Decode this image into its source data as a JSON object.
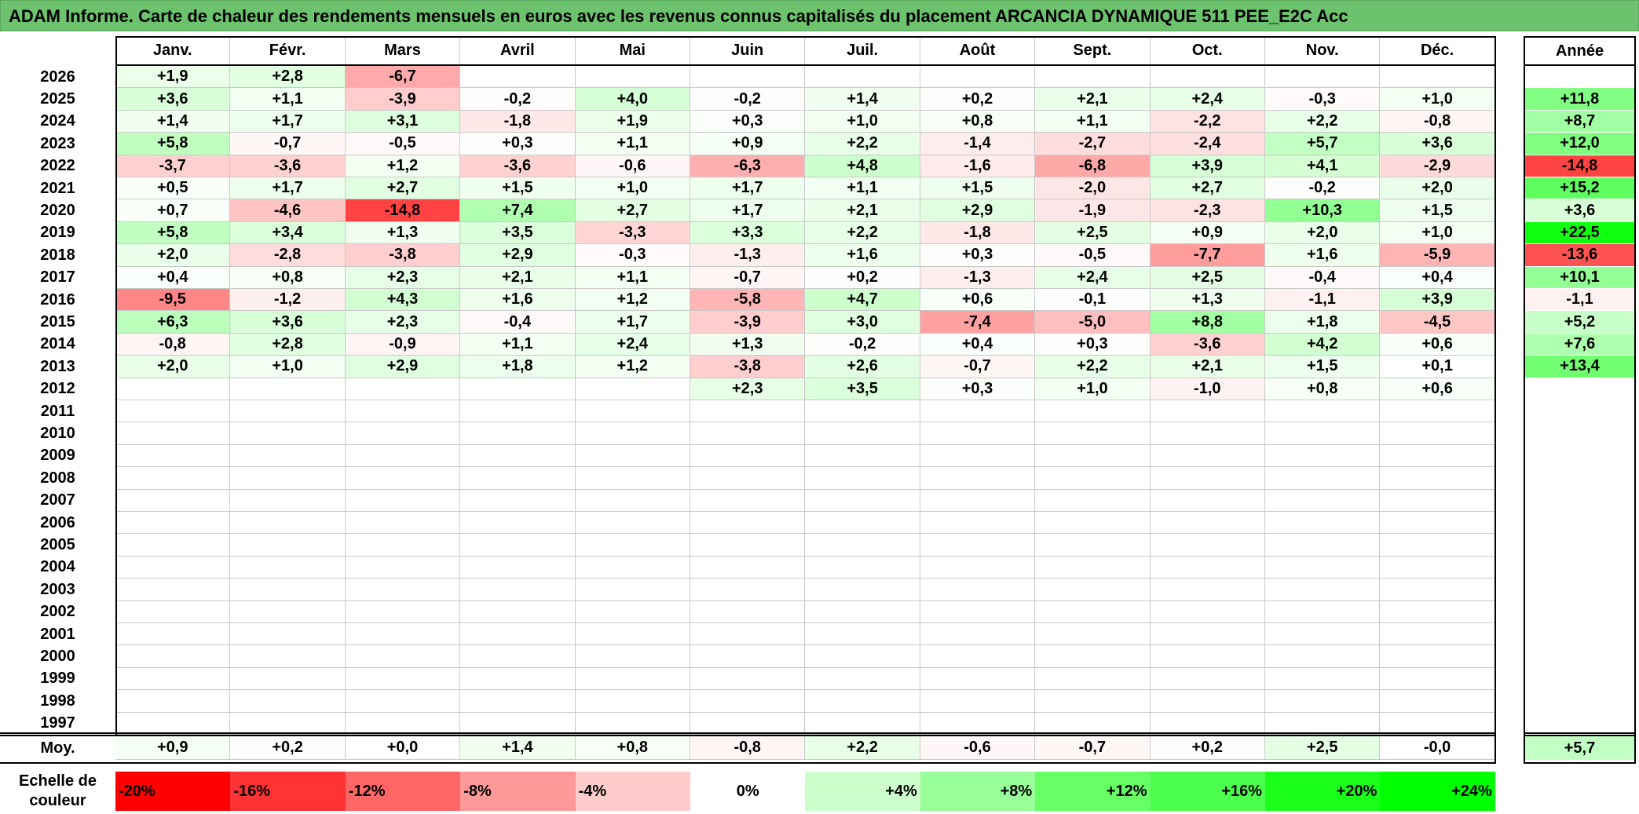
{
  "title": "ADAM Informe. Carte de chaleur des rendements mensuels en euros avec les revenus connus capitalisés du placement ARCANCIA DYNAMIQUE 511 PEE_E2C Acc",
  "chart_data": {
    "type": "heatmap",
    "title": "ADAM Informe. Carte de chaleur des rendements mensuels en euros avec les revenus connus capitalisés du placement ARCANCIA DYNAMIQUE 511 PEE_E2C Acc",
    "months": [
      "Janv.",
      "Févr.",
      "Mars",
      "Avril",
      "Mai",
      "Juin",
      "Juil.",
      "Août",
      "Sept.",
      "Oct.",
      "Nov.",
      "Déc."
    ],
    "year_header": "Année",
    "avg_label": "Moy.",
    "rows": [
      {
        "year": "2026",
        "values": [
          "+1,9",
          "+2,8",
          "-6,7",
          "",
          "",
          "",
          "",
          "",
          "",
          "",
          "",
          ""
        ],
        "annual": ""
      },
      {
        "year": "2025",
        "values": [
          "+3,6",
          "+1,1",
          "-3,9",
          "-0,2",
          "+4,0",
          "-0,2",
          "+1,4",
          "+0,2",
          "+2,1",
          "+2,4",
          "-0,3",
          "+1,0"
        ],
        "annual": "+11,8"
      },
      {
        "year": "2024",
        "values": [
          "+1,4",
          "+1,7",
          "+3,1",
          "-1,8",
          "+1,9",
          "+0,3",
          "+1,0",
          "+0,8",
          "+1,1",
          "-2,2",
          "+2,2",
          "-0,8"
        ],
        "annual": "+8,7"
      },
      {
        "year": "2023",
        "values": [
          "+5,8",
          "-0,7",
          "-0,5",
          "+0,3",
          "+1,1",
          "+0,9",
          "+2,2",
          "-1,4",
          "-2,7",
          "-2,4",
          "+5,7",
          "+3,6"
        ],
        "annual": "+12,0"
      },
      {
        "year": "2022",
        "values": [
          "-3,7",
          "-3,6",
          "+1,2",
          "-3,6",
          "-0,6",
          "-6,3",
          "+4,8",
          "-1,6",
          "-6,8",
          "+3,9",
          "+4,1",
          "-2,9"
        ],
        "annual": "-14,8"
      },
      {
        "year": "2021",
        "values": [
          "+0,5",
          "+1,7",
          "+2,7",
          "+1,5",
          "+1,0",
          "+1,7",
          "+1,1",
          "+1,5",
          "-2,0",
          "+2,7",
          "-0,2",
          "+2,0"
        ],
        "annual": "+15,2"
      },
      {
        "year": "2020",
        "values": [
          "+0,7",
          "-4,6",
          "-14,8",
          "+7,4",
          "+2,7",
          "+1,7",
          "+2,1",
          "+2,9",
          "-1,9",
          "-2,3",
          "+10,3",
          "+1,5"
        ],
        "annual": "+3,6"
      },
      {
        "year": "2019",
        "values": [
          "+5,8",
          "+3,4",
          "+1,3",
          "+3,5",
          "-3,3",
          "+3,3",
          "+2,2",
          "-1,8",
          "+2,5",
          "+0,9",
          "+2,0",
          "+1,0"
        ],
        "annual": "+22,5"
      },
      {
        "year": "2018",
        "values": [
          "+2,0",
          "-2,8",
          "-3,8",
          "+2,9",
          "-0,3",
          "-1,3",
          "+1,6",
          "+0,3",
          "-0,5",
          "-7,7",
          "+1,6",
          "-5,9"
        ],
        "annual": "-13,6"
      },
      {
        "year": "2017",
        "values": [
          "+0,4",
          "+0,8",
          "+2,3",
          "+2,1",
          "+1,1",
          "-0,7",
          "+0,2",
          "-1,3",
          "+2,4",
          "+2,5",
          "-0,4",
          "+0,4"
        ],
        "annual": "+10,1"
      },
      {
        "year": "2016",
        "values": [
          "-9,5",
          "-1,2",
          "+4,3",
          "+1,6",
          "+1,2",
          "-5,8",
          "+4,7",
          "+0,6",
          "-0,1",
          "+1,3",
          "-1,1",
          "+3,9"
        ],
        "annual": "-1,1"
      },
      {
        "year": "2015",
        "values": [
          "+6,3",
          "+3,6",
          "+2,3",
          "-0,4",
          "+1,7",
          "-3,9",
          "+3,0",
          "-7,4",
          "-5,0",
          "+8,8",
          "+1,8",
          "-4,5"
        ],
        "annual": "+5,2"
      },
      {
        "year": "2014",
        "values": [
          "-0,8",
          "+2,8",
          "-0,9",
          "+1,1",
          "+2,4",
          "+1,3",
          "-0,2",
          "+0,4",
          "+0,3",
          "-3,6",
          "+4,2",
          "+0,6"
        ],
        "annual": "+7,6"
      },
      {
        "year": "2013",
        "values": [
          "+2,0",
          "+1,0",
          "+2,9",
          "+1,8",
          "+1,2",
          "-3,8",
          "+2,6",
          "-0,7",
          "+2,2",
          "+2,1",
          "+1,5",
          "+0,1"
        ],
        "annual": "+13,4"
      },
      {
        "year": "2012",
        "values": [
          "",
          "",
          "",
          "",
          "",
          "+2,3",
          "+3,5",
          "+0,3",
          "+1,0",
          "-1,0",
          "+0,8",
          "+0,6"
        ],
        "annual": ""
      },
      {
        "year": "2011",
        "values": [
          "",
          "",
          "",
          "",
          "",
          "",
          "",
          "",
          "",
          "",
          "",
          ""
        ],
        "annual": ""
      },
      {
        "year": "2010",
        "values": [
          "",
          "",
          "",
          "",
          "",
          "",
          "",
          "",
          "",
          "",
          "",
          ""
        ],
        "annual": ""
      },
      {
        "year": "2009",
        "values": [
          "",
          "",
          "",
          "",
          "",
          "",
          "",
          "",
          "",
          "",
          "",
          ""
        ],
        "annual": ""
      },
      {
        "year": "2008",
        "values": [
          "",
          "",
          "",
          "",
          "",
          "",
          "",
          "",
          "",
          "",
          "",
          ""
        ],
        "annual": ""
      },
      {
        "year": "2007",
        "values": [
          "",
          "",
          "",
          "",
          "",
          "",
          "",
          "",
          "",
          "",
          "",
          ""
        ],
        "annual": ""
      },
      {
        "year": "2006",
        "values": [
          "",
          "",
          "",
          "",
          "",
          "",
          "",
          "",
          "",
          "",
          "",
          ""
        ],
        "annual": ""
      },
      {
        "year": "2005",
        "values": [
          "",
          "",
          "",
          "",
          "",
          "",
          "",
          "",
          "",
          "",
          "",
          ""
        ],
        "annual": ""
      },
      {
        "year": "2004",
        "values": [
          "",
          "",
          "",
          "",
          "",
          "",
          "",
          "",
          "",
          "",
          "",
          ""
        ],
        "annual": ""
      },
      {
        "year": "2003",
        "values": [
          "",
          "",
          "",
          "",
          "",
          "",
          "",
          "",
          "",
          "",
          "",
          ""
        ],
        "annual": ""
      },
      {
        "year": "2002",
        "values": [
          "",
          "",
          "",
          "",
          "",
          "",
          "",
          "",
          "",
          "",
          "",
          ""
        ],
        "annual": ""
      },
      {
        "year": "2001",
        "values": [
          "",
          "",
          "",
          "",
          "",
          "",
          "",
          "",
          "",
          "",
          "",
          ""
        ],
        "annual": ""
      },
      {
        "year": "2000",
        "values": [
          "",
          "",
          "",
          "",
          "",
          "",
          "",
          "",
          "",
          "",
          "",
          ""
        ],
        "annual": ""
      },
      {
        "year": "1999",
        "values": [
          "",
          "",
          "",
          "",
          "",
          "",
          "",
          "",
          "",
          "",
          "",
          ""
        ],
        "annual": ""
      },
      {
        "year": "1998",
        "values": [
          "",
          "",
          "",
          "",
          "",
          "",
          "",
          "",
          "",
          "",
          "",
          ""
        ],
        "annual": ""
      },
      {
        "year": "1997",
        "values": [
          "",
          "",
          "",
          "",
          "",
          "",
          "",
          "",
          "",
          "",
          "",
          ""
        ],
        "annual": ""
      }
    ],
    "averages": [
      "+0,9",
      "+0,2",
      "+0,0",
      "+1,4",
      "+0,8",
      "-0,8",
      "+2,2",
      "-0,6",
      "-0,7",
      "+0,2",
      "+2,5",
      "-0,0"
    ],
    "avg_annual": "+5,7",
    "scale_label_line1": "Echelle de",
    "scale_label_line2": "couleur",
    "scale": [
      {
        "label": "-20%",
        "value": -20,
        "color": "#ff0000"
      },
      {
        "label": "-16%",
        "value": -16,
        "color": "#ff3333"
      },
      {
        "label": "-12%",
        "value": -12,
        "color": "#ff6666"
      },
      {
        "label": "-8%",
        "value": -8,
        "color": "#ff9999"
      },
      {
        "label": "-4%",
        "value": -4,
        "color": "#ffcccc"
      },
      {
        "label": "0%",
        "value": 0,
        "color": "#ffffff"
      },
      {
        "label": "+4%",
        "value": 4,
        "color": "#ccffcc"
      },
      {
        "label": "+8%",
        "value": 8,
        "color": "#99ff99"
      },
      {
        "label": "+12%",
        "value": 12,
        "color": "#66ff66"
      },
      {
        "label": "+16%",
        "value": 16,
        "color": "#4dff4d"
      },
      {
        "label": "+20%",
        "value": 20,
        "color": "#1aff1a"
      },
      {
        "label": "+24%",
        "value": 24,
        "color": "#00ff00"
      }
    ]
  }
}
